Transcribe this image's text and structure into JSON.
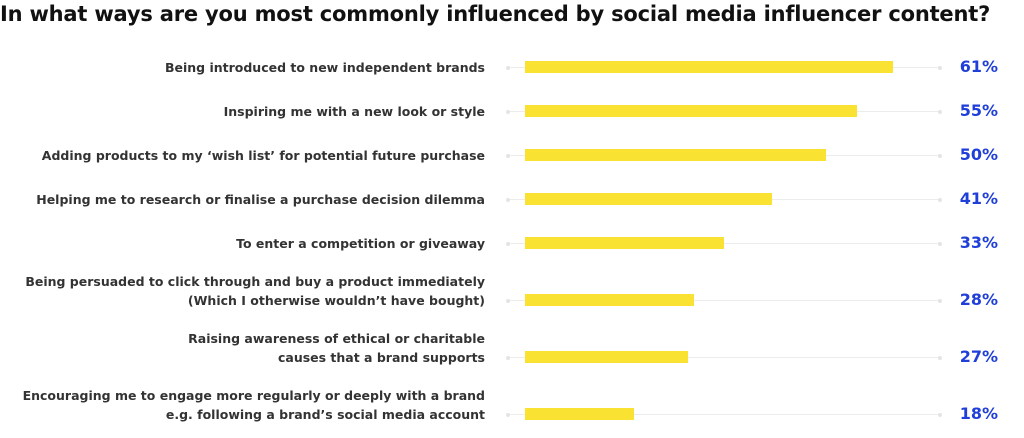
{
  "chart_data": {
    "type": "bar",
    "orientation": "horizontal",
    "title": "In what ways are you most commonly influenced by social media influencer content?",
    "categories": [
      "Being introduced to new independent brands",
      "Inspiring me with a new look or style",
      "Adding products to my ‘wish list’ for potential future purchase",
      "Helping me to research or finalise a purchase decision dilemma",
      "To enter a competition or giveaway",
      "Being persuaded to click through and buy a product immediately\n(Which I otherwise wouldn’t have bought)",
      "Raising awareness of ethical or charitable\ncauses that a brand supports",
      "Encouraging me to engage more regularly or deeply with a brand\ne.g. following a brand’s social media account"
    ],
    "values": [
      61,
      55,
      50,
      41,
      33,
      28,
      27,
      18
    ],
    "value_labels": [
      "61%",
      "55%",
      "50%",
      "41%",
      "33%",
      "28%",
      "27%",
      "18%"
    ],
    "color": "#f9e231",
    "label_color": "#1f3fd8",
    "xlim": [
      0,
      70
    ]
  }
}
